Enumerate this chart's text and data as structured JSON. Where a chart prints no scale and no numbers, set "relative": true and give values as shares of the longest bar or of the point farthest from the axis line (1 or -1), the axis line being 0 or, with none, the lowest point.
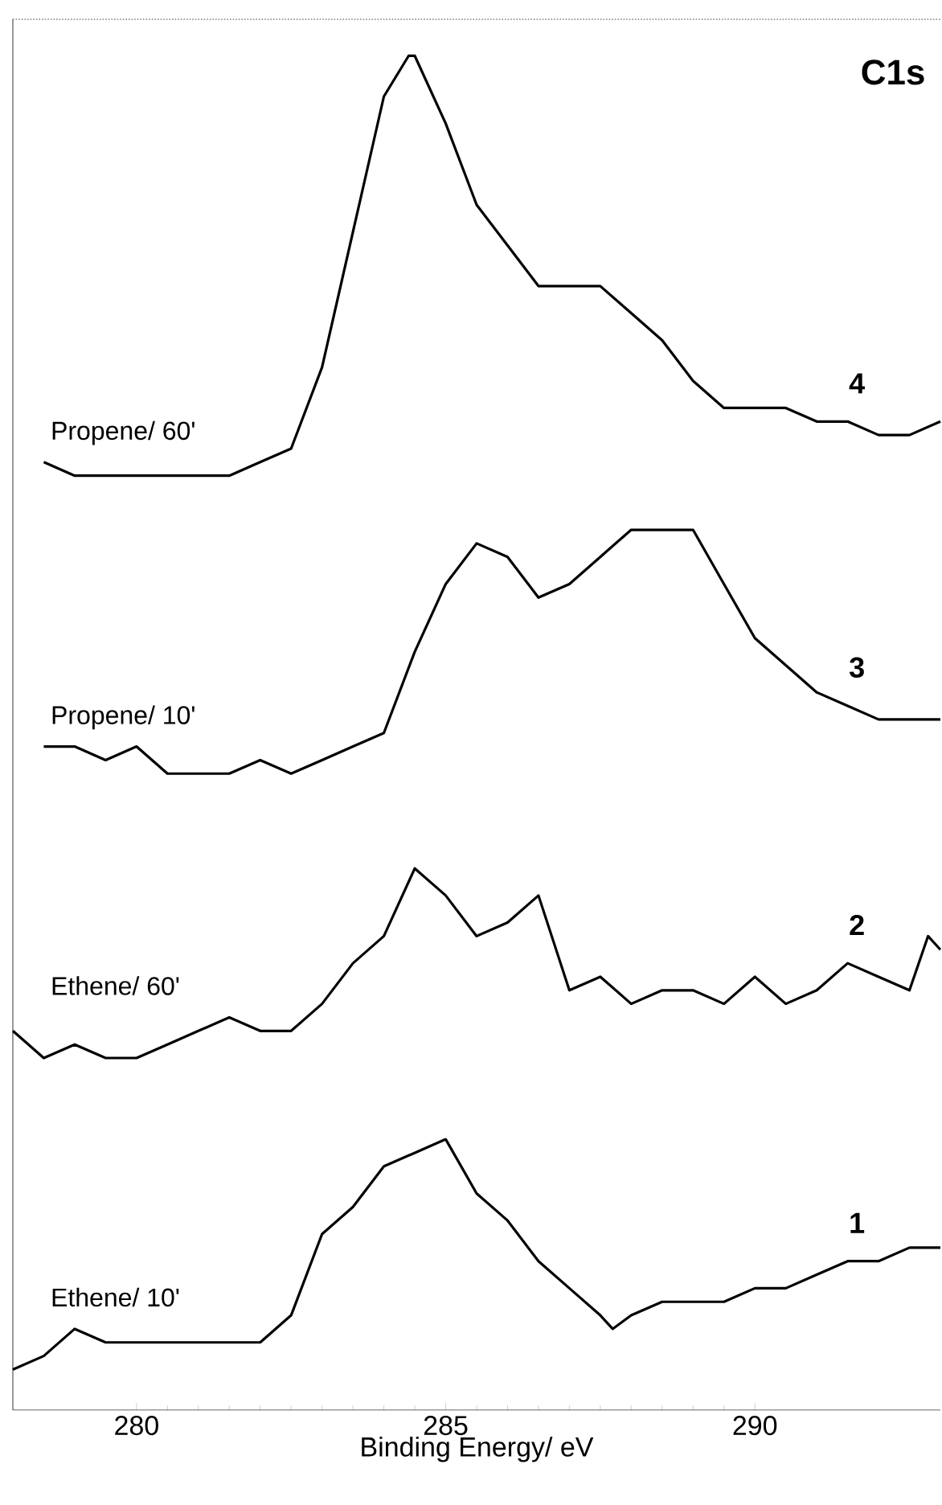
{
  "chart_data": {
    "type": "line",
    "title": "C1s",
    "xlabel": "Binding Energy/ eV",
    "relative": true,
    "xlim": [
      278,
      293
    ],
    "xticks": [
      280,
      285,
      290
    ],
    "legend": false,
    "grid": false,
    "marker": "none",
    "line_style": "solid",
    "series": [
      {
        "name": "Propene/ 60'",
        "color": "#000000",
        "x": [
          278.5,
          279,
          279.5,
          280,
          280.5,
          281,
          281.5,
          282,
          282.5,
          283,
          283.5,
          284,
          284.4,
          284.5,
          285,
          285.5,
          286,
          286.5,
          287,
          287.5,
          288,
          288.5,
          289,
          289.5,
          290,
          290.5,
          291,
          291.5,
          292,
          292.5,
          293
        ],
        "values": [
          0.7,
          0.69,
          0.69,
          0.69,
          0.69,
          0.69,
          0.69,
          0.7,
          0.71,
          0.77,
          0.87,
          0.97,
          1.0,
          1.0,
          0.95,
          0.89,
          0.86,
          0.83,
          0.83,
          0.83,
          0.81,
          0.79,
          0.76,
          0.74,
          0.74,
          0.74,
          0.73,
          0.73,
          0.72,
          0.72,
          0.73
        ]
      },
      {
        "name": "Propene/ 10'",
        "color": "#000000",
        "x": [
          278.5,
          279,
          279.5,
          280,
          280.5,
          281,
          281.5,
          282,
          282.5,
          283,
          283.5,
          284,
          284.5,
          285,
          285.5,
          286,
          286.5,
          287,
          287.5,
          288,
          288.5,
          289,
          289.5,
          290,
          290.5,
          291,
          291.5,
          292,
          292.5,
          293
        ],
        "values": [
          0.49,
          0.49,
          0.48,
          0.49,
          0.47,
          0.47,
          0.47,
          0.48,
          0.47,
          0.48,
          0.49,
          0.5,
          0.56,
          0.61,
          0.64,
          0.63,
          0.6,
          0.61,
          0.63,
          0.65,
          0.65,
          0.65,
          0.61,
          0.57,
          0.55,
          0.53,
          0.52,
          0.51,
          0.51,
          0.51
        ]
      },
      {
        "name": "Ethene/ 60'",
        "color": "#000000",
        "x": [
          278,
          278.5,
          279,
          279.5,
          280,
          280.5,
          281,
          281.5,
          282,
          282.5,
          283,
          283.5,
          284,
          284.5,
          285,
          285.5,
          286,
          286.5,
          287,
          287.5,
          288,
          288.5,
          289,
          289.5,
          290,
          290.5,
          291,
          291.5,
          292,
          292.5,
          292.8,
          293
        ],
        "values": [
          0.28,
          0.26,
          0.27,
          0.26,
          0.26,
          0.27,
          0.28,
          0.29,
          0.28,
          0.28,
          0.3,
          0.33,
          0.35,
          0.4,
          0.38,
          0.35,
          0.36,
          0.38,
          0.31,
          0.32,
          0.3,
          0.31,
          0.31,
          0.3,
          0.32,
          0.3,
          0.31,
          0.33,
          0.32,
          0.31,
          0.35,
          0.34
        ]
      },
      {
        "name": "Ethene/ 10'",
        "color": "#000000",
        "x": [
          278,
          278.5,
          279,
          279.5,
          280,
          280.5,
          281,
          281.5,
          282,
          282.5,
          283,
          283.5,
          284,
          284.5,
          285,
          285.5,
          286,
          286.5,
          287,
          287.5,
          287.7,
          288,
          288.5,
          289,
          289.5,
          290,
          290.5,
          291,
          291.5,
          292,
          292.5,
          293
        ],
        "values": [
          0.03,
          0.04,
          0.06,
          0.05,
          0.05,
          0.05,
          0.05,
          0.05,
          0.05,
          0.07,
          0.13,
          0.15,
          0.18,
          0.19,
          0.2,
          0.16,
          0.14,
          0.11,
          0.09,
          0.07,
          0.06,
          0.07,
          0.08,
          0.08,
          0.08,
          0.09,
          0.09,
          0.1,
          0.11,
          0.11,
          0.12,
          0.12
        ]
      }
    ],
    "annotations": [
      "4",
      "3",
      "2",
      "1"
    ]
  }
}
